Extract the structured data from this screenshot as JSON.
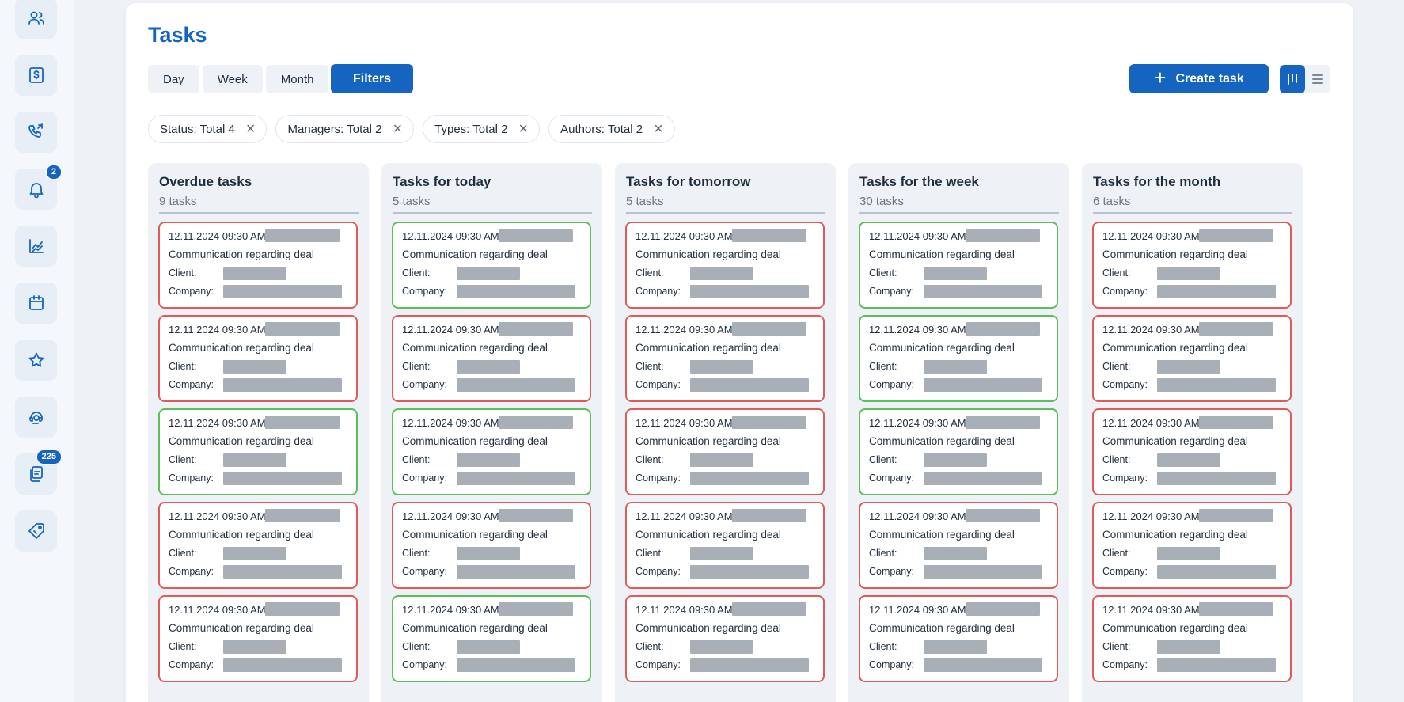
{
  "sidebar": {
    "items": [
      {
        "icon": "users-icon"
      },
      {
        "icon": "dollar-icon"
      },
      {
        "icon": "phone-call-icon"
      },
      {
        "icon": "bell-icon",
        "badge": "2"
      },
      {
        "icon": "analytics-icon"
      },
      {
        "icon": "calendar-icon"
      },
      {
        "icon": "star-icon"
      },
      {
        "icon": "support-icon"
      },
      {
        "icon": "documents-icon",
        "badge": "225"
      },
      {
        "icon": "tag-icon"
      }
    ]
  },
  "header": {
    "title": "Tasks",
    "periods": [
      "Day",
      "Week",
      "Month"
    ],
    "filters_label": "Filters",
    "create_label": "Create task",
    "view_modes": [
      "kanban-view-icon",
      "list-view-icon"
    ]
  },
  "filter_chips": [
    {
      "label": "Status: Total 4"
    },
    {
      "label": "Managers: Total 2"
    },
    {
      "label": "Types: Total 2"
    },
    {
      "label": "Authors: Total 2"
    }
  ],
  "colors": {
    "accent": "#1565c0",
    "overdue": "#e05a5a",
    "on_time": "#5cbf5c"
  },
  "card_labels": {
    "client": "Client:",
    "company": "Company:"
  },
  "columns": [
    {
      "title": "Overdue tasks",
      "count": "9 tasks",
      "cards": [
        {
          "date": "12.11.2024 09:30 AM",
          "subject": "Communication regarding deal",
          "status": "overdue"
        },
        {
          "date": "12.11.2024 09:30 AM",
          "subject": "Communication regarding deal",
          "status": "overdue"
        },
        {
          "date": "12.11.2024 09:30 AM",
          "subject": "Communication regarding deal",
          "status": "ok"
        },
        {
          "date": "12.11.2024 09:30 AM",
          "subject": "Communication regarding deal",
          "status": "overdue"
        },
        {
          "date": "12.11.2024 09:30 AM",
          "subject": "Communication regarding deal",
          "status": "overdue"
        }
      ]
    },
    {
      "title": "Tasks for today",
      "count": "5 tasks",
      "cards": [
        {
          "date": "12.11.2024 09:30 AM",
          "subject": "Communication regarding deal",
          "status": "ok"
        },
        {
          "date": "12.11.2024 09:30 AM",
          "subject": "Communication regarding deal",
          "status": "overdue"
        },
        {
          "date": "12.11.2024 09:30 AM",
          "subject": "Communication regarding deal",
          "status": "ok"
        },
        {
          "date": "12.11.2024 09:30 AM",
          "subject": "Communication regarding deal",
          "status": "overdue"
        },
        {
          "date": "12.11.2024 09:30 AM",
          "subject": "Communication regarding deal",
          "status": "ok"
        }
      ]
    },
    {
      "title": "Tasks for tomorrow",
      "count": "5 tasks",
      "cards": [
        {
          "date": "12.11.2024 09:30 AM",
          "subject": "Communication regarding deal",
          "status": "overdue"
        },
        {
          "date": "12.11.2024 09:30 AM",
          "subject": "Communication regarding deal",
          "status": "overdue"
        },
        {
          "date": "12.11.2024 09:30 AM",
          "subject": "Communication regarding deal",
          "status": "overdue"
        },
        {
          "date": "12.11.2024 09:30 AM",
          "subject": "Communication regarding deal",
          "status": "overdue"
        },
        {
          "date": "12.11.2024 09:30 AM",
          "subject": "Communication regarding deal",
          "status": "overdue"
        }
      ]
    },
    {
      "title": "Tasks for the week",
      "count": "30 tasks",
      "cards": [
        {
          "date": "12.11.2024 09:30 AM",
          "subject": "Communication regarding deal",
          "status": "ok"
        },
        {
          "date": "12.11.2024 09:30 AM",
          "subject": "Communication regarding deal",
          "status": "ok"
        },
        {
          "date": "12.11.2024 09:30 AM",
          "subject": "Communication regarding deal",
          "status": "ok"
        },
        {
          "date": "12.11.2024 09:30 AM",
          "subject": "Communication regarding deal",
          "status": "overdue"
        },
        {
          "date": "12.11.2024 09:30 AM",
          "subject": "Communication regarding deal",
          "status": "overdue"
        }
      ]
    },
    {
      "title": "Tasks for the month",
      "count": "6 tasks",
      "cards": [
        {
          "date": "12.11.2024 09:30 AM",
          "subject": "Communication regarding deal",
          "status": "overdue"
        },
        {
          "date": "12.11.2024 09:30 AM",
          "subject": "Communication regarding deal",
          "status": "overdue"
        },
        {
          "date": "12.11.2024 09:30 AM",
          "subject": "Communication regarding deal",
          "status": "overdue"
        },
        {
          "date": "12.11.2024 09:30 AM",
          "subject": "Communication regarding deal",
          "status": "overdue"
        },
        {
          "date": "12.11.2024 09:30 AM",
          "subject": "Communication regarding deal",
          "status": "overdue"
        }
      ]
    }
  ]
}
